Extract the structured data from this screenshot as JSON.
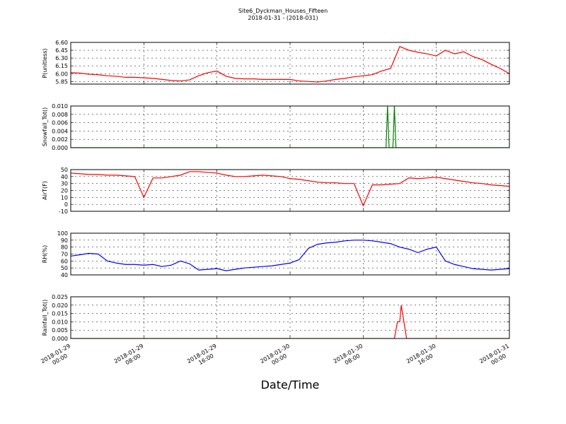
{
  "title": "Site6_Dyckman_Houses_Fifteen",
  "subtitle": "2018-01-31 - (2018-031)",
  "xlabel": "Date/Time",
  "xlim": [
    "2018-01-29 00:00",
    "2018-01-31 00:00"
  ],
  "xticks": [
    {
      "value": "2018-01-29 00:00",
      "label": [
        "2018-01-29",
        "00:00"
      ]
    },
    {
      "value": "2018-01-29 08:00",
      "label": [
        "2018-01-29",
        "08:00"
      ]
    },
    {
      "value": "2018-01-29 16:00",
      "label": [
        "2018-01-29",
        "16:00"
      ]
    },
    {
      "value": "2018-01-30 00:00",
      "label": [
        "2018-01-30",
        "00:00"
      ]
    },
    {
      "value": "2018-01-30 08:00",
      "label": [
        "2018-01-30",
        "08:00"
      ]
    },
    {
      "value": "2018-01-30 16:00",
      "label": [
        "2018-01-30",
        "16:00"
      ]
    },
    {
      "value": "2018-01-31 00:00",
      "label": [
        "2018-01-31",
        "00:00"
      ]
    }
  ],
  "x": [
    "2018-01-29 00:00",
    "2018-01-29 01:00",
    "2018-01-29 02:00",
    "2018-01-29 03:00",
    "2018-01-29 04:00",
    "2018-01-29 05:00",
    "2018-01-29 06:00",
    "2018-01-29 07:00",
    "2018-01-29 08:00",
    "2018-01-29 09:00",
    "2018-01-29 10:00",
    "2018-01-29 11:00",
    "2018-01-29 12:00",
    "2018-01-29 13:00",
    "2018-01-29 14:00",
    "2018-01-29 15:00",
    "2018-01-29 16:00",
    "2018-01-29 17:00",
    "2018-01-29 18:00",
    "2018-01-29 19:00",
    "2018-01-29 20:00",
    "2018-01-29 21:00",
    "2018-01-29 22:00",
    "2018-01-29 23:00",
    "2018-01-30 00:00",
    "2018-01-30 01:00",
    "2018-01-30 02:00",
    "2018-01-30 03:00",
    "2018-01-30 04:00",
    "2018-01-30 05:00",
    "2018-01-30 06:00",
    "2018-01-30 07:00",
    "2018-01-30 08:00",
    "2018-01-30 09:00",
    "2018-01-30 10:00",
    "2018-01-30 11:00",
    "2018-01-30 12:00",
    "2018-01-30 13:00",
    "2018-01-30 14:00",
    "2018-01-30 15:00",
    "2018-01-30 16:00",
    "2018-01-30 17:00",
    "2018-01-30 18:00",
    "2018-01-30 19:00",
    "2018-01-30 20:00",
    "2018-01-30 21:00",
    "2018-01-30 22:00",
    "2018-01-30 23:00",
    "2018-01-31 00:00"
  ],
  "chart_data": [
    {
      "type": "line",
      "ylabel": "P(unitless)",
      "grid": true,
      "ylim": [
        5.8,
        6.6
      ],
      "yticks": [
        {
          "value": 5.85,
          "label": "5.85"
        },
        {
          "value": 6.0,
          "label": "6.00"
        },
        {
          "value": 6.15,
          "label": "6.15"
        },
        {
          "value": 6.3,
          "label": "6.30"
        },
        {
          "value": 6.45,
          "label": "6.45"
        },
        {
          "value": 6.6,
          "label": "6.60"
        }
      ],
      "series": [
        {
          "color": "#ff0000",
          "values": [
            6.02,
            6.01,
            5.99,
            5.98,
            5.96,
            5.95,
            5.93,
            5.93,
            5.92,
            5.91,
            5.89,
            5.87,
            5.86,
            5.88,
            5.96,
            6.02,
            6.05,
            5.95,
            5.91,
            5.9,
            5.9,
            5.89,
            5.89,
            5.89,
            5.89,
            5.86,
            5.85,
            5.84,
            5.86,
            5.89,
            5.91,
            5.94,
            5.96,
            5.98,
            6.05,
            6.1,
            6.52,
            6.45,
            6.41,
            6.38,
            6.34,
            6.45,
            6.38,
            6.42,
            6.33,
            6.27,
            6.18,
            6.1,
            6.0
          ]
        }
      ]
    },
    {
      "type": "line",
      "ylabel": "Snowfall_Tot()",
      "grid": true,
      "ylim": [
        0,
        0.01
      ],
      "yticks": [
        {
          "value": 0,
          "label": "0.000"
        },
        {
          "value": 0.002,
          "label": "0.002"
        },
        {
          "value": 0.004,
          "label": "0.004"
        },
        {
          "value": 0.006,
          "label": "0.006"
        },
        {
          "value": 0.008,
          "label": "0.008"
        },
        {
          "value": 0.01,
          "label": "0.010"
        }
      ],
      "x": [
        "2018-01-29 00:00",
        "2018-01-30 10:30",
        "2018-01-30 10:40",
        "2018-01-30 10:50",
        "2018-01-30 11:15",
        "2018-01-30 11:25",
        "2018-01-30 11:35",
        "2018-01-31 00:00"
      ],
      "series": [
        {
          "color": "#008000",
          "values": [
            0,
            0,
            0.01,
            0,
            0,
            0.01,
            0,
            0
          ]
        }
      ]
    },
    {
      "type": "line",
      "ylabel": "AirT(F)",
      "grid": true,
      "ylim": [
        -10,
        50
      ],
      "yticks": [
        -10,
        0,
        10,
        20,
        30,
        40,
        50
      ],
      "series": [
        {
          "color": "#ff0000",
          "values": [
            45,
            44,
            43,
            43,
            42,
            42,
            41,
            40,
            10,
            38,
            38,
            40,
            42,
            47,
            47,
            46,
            45,
            42,
            40,
            40,
            41,
            42,
            41,
            40,
            37,
            36,
            34,
            32,
            31,
            31,
            30,
            30,
            -2,
            28,
            28,
            29,
            30,
            38,
            37,
            38,
            39,
            37,
            35,
            33,
            31,
            30,
            28,
            27,
            26
          ]
        }
      ]
    },
    {
      "type": "line",
      "ylabel": "RH(%)",
      "grid": true,
      "ylim": [
        40,
        100
      ],
      "yticks": [
        40,
        50,
        60,
        70,
        80,
        90,
        100
      ],
      "series": [
        {
          "color": "#0000ff",
          "values": [
            67,
            69,
            71,
            70,
            60,
            57,
            55,
            55,
            54,
            55,
            52,
            54,
            60,
            56,
            47,
            48,
            49,
            46,
            48,
            50,
            51,
            52,
            53,
            55,
            57,
            62,
            78,
            84,
            86,
            87,
            89,
            90,
            90,
            89,
            87,
            85,
            80,
            77,
            72,
            77,
            80,
            60,
            55,
            52,
            49,
            48,
            47,
            48,
            49
          ]
        }
      ]
    },
    {
      "type": "line",
      "ylabel": "Rainfall_Tot()",
      "grid": true,
      "ylim": [
        0,
        0.025
      ],
      "yticks": [
        {
          "value": 0,
          "label": "0.000"
        },
        {
          "value": 0.005,
          "label": "0.005"
        },
        {
          "value": 0.01,
          "label": "0.010"
        },
        {
          "value": 0.015,
          "label": "0.015"
        },
        {
          "value": 0.02,
          "label": "0.020"
        },
        {
          "value": 0.025,
          "label": "0.025"
        }
      ],
      "x": [
        "2018-01-29 00:00",
        "2018-01-30 11:25",
        "2018-01-30 11:45",
        "2018-01-30 12:00",
        "2018-01-30 12:10",
        "2018-01-30 12:45",
        "2018-01-31 00:00"
      ],
      "series": [
        {
          "color": "#ff0000",
          "values": [
            0,
            0,
            0.01,
            0.01,
            0.02,
            0,
            0
          ]
        }
      ]
    }
  ]
}
